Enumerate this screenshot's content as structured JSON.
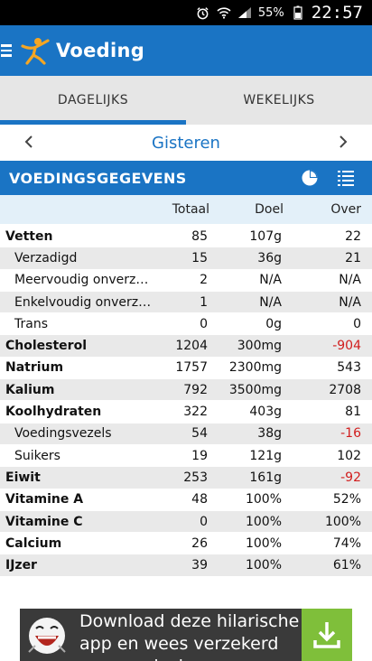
{
  "status": {
    "battery": "55%",
    "time": "22:57"
  },
  "app": {
    "title": "Voeding"
  },
  "tabs": [
    {
      "label": "DAGELIJKS"
    },
    {
      "label": "WEKELIJKS"
    }
  ],
  "date": {
    "label": "Gisteren"
  },
  "section": {
    "title": "VOEDINGSGEGEVENS"
  },
  "columns": {
    "total": "Totaal",
    "goal": "Doel",
    "over": "Over"
  },
  "rows": [
    {
      "name": "Vetten",
      "total": "85",
      "goal": "107g",
      "over": "22"
    },
    {
      "name": "Verzadigd",
      "total": "15",
      "goal": "36g",
      "over": "21"
    },
    {
      "name": "Meervoudig onverz…",
      "total": "2",
      "goal": "N/A",
      "over": "N/A"
    },
    {
      "name": "Enkelvoudig onverz…",
      "total": "1",
      "goal": "N/A",
      "over": "N/A"
    },
    {
      "name": "Trans",
      "total": "0",
      "goal": "0g",
      "over": "0"
    },
    {
      "name": "Cholesterol",
      "total": "1204",
      "goal": "300mg",
      "over": "-904"
    },
    {
      "name": "Natrium",
      "total": "1757",
      "goal": "2300mg",
      "over": "543"
    },
    {
      "name": "Kalium",
      "total": "792",
      "goal": "3500mg",
      "over": "2708"
    },
    {
      "name": "Koolhydraten",
      "total": "322",
      "goal": "403g",
      "over": "81"
    },
    {
      "name": "Voedingsvezels",
      "total": "54",
      "goal": "38g",
      "over": "-16"
    },
    {
      "name": "Suikers",
      "total": "19",
      "goal": "121g",
      "over": "102"
    },
    {
      "name": "Eiwit",
      "total": "253",
      "goal": "161g",
      "over": "-92"
    },
    {
      "name": "Vitamine A",
      "total": "48",
      "goal": "100%",
      "over": "52%"
    },
    {
      "name": "Vitamine C",
      "total": "0",
      "goal": "100%",
      "over": "100%"
    },
    {
      "name": "Calcium",
      "total": "26",
      "goal": "100%",
      "over": "74%"
    },
    {
      "name": "IJzer",
      "total": "39",
      "goal": "100%",
      "over": "61%"
    }
  ],
  "ad": {
    "text": "Download deze hilarische app en wees verzekerd van een lach"
  },
  "colors": {
    "primary": "#1a74c4",
    "negative": "#d11d1d",
    "ad_button": "#7fbf3a"
  }
}
